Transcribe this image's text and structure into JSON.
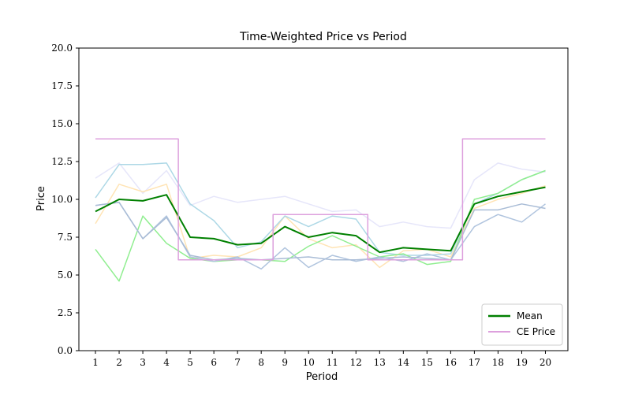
{
  "chart_data": {
    "type": "line",
    "title": "Time-Weighted Price vs Period",
    "xlabel": "Period",
    "ylabel": "Price",
    "x": [
      1,
      2,
      3,
      4,
      5,
      6,
      7,
      8,
      9,
      10,
      11,
      12,
      13,
      14,
      15,
      16,
      17,
      18,
      19,
      20
    ],
    "xlim": [
      0.3,
      20.95
    ],
    "ylim": [
      0,
      20
    ],
    "yticks": [
      "0.0",
      "2.5",
      "5.0",
      "7.5",
      "10.0",
      "12.5",
      "15.0",
      "17.5",
      "20.0"
    ],
    "ytick_values": [
      0,
      2.5,
      5,
      7.5,
      10,
      12.5,
      15,
      17.5,
      20
    ],
    "grid": false,
    "legend_position": "lower-right",
    "series": [
      {
        "values": [
          11.4,
          12.4,
          10.4,
          11.9,
          9.6,
          10.2,
          9.8,
          10.0,
          10.2,
          9.7,
          9.2,
          9.3,
          8.2,
          8.5,
          8.2,
          8.1,
          11.3,
          12.4,
          12.0,
          11.8
        ],
        "color": "#e6e6fa",
        "width": 1.5,
        "legend": false
      },
      {
        "values": [
          8.4,
          11.0,
          10.5,
          11.0,
          6.1,
          6.3,
          6.2,
          6.8,
          8.9,
          7.4,
          6.8,
          7.0,
          5.5,
          6.6,
          6.7,
          6.2,
          9.4,
          10.0,
          10.4,
          10.9
        ],
        "color": "#ffe4b5",
        "width": 1.5,
        "legend": false
      },
      {
        "values": [
          10.1,
          12.3,
          12.3,
          12.4,
          9.7,
          8.6,
          6.8,
          7.2,
          8.9,
          8.2,
          8.9,
          8.7,
          6.5,
          6.3,
          6.3,
          6.4,
          9.7,
          10.4,
          11.3,
          11.9
        ],
        "color": "#add8e6",
        "width": 1.5,
        "legend": false
      },
      {
        "values": [
          6.7,
          4.6,
          8.9,
          7.1,
          6.1,
          5.9,
          6.0,
          6.0,
          5.9,
          6.9,
          7.6,
          6.9,
          6.2,
          6.4,
          5.7,
          5.9,
          10.0,
          10.4,
          11.3,
          11.9
        ],
        "color": "#90ee90",
        "width": 1.5,
        "legend": false
      },
      {
        "values": [
          9.6,
          9.8,
          7.4,
          8.9,
          6.2,
          5.9,
          6.2,
          5.4,
          6.8,
          5.5,
          6.3,
          5.9,
          6.2,
          5.9,
          6.4,
          6.0,
          8.2,
          9.0,
          8.5,
          9.7
        ],
        "color": "#b0c4de",
        "width": 1.5,
        "legend": false
      },
      {
        "values": [
          9.6,
          9.8,
          7.4,
          8.8,
          6.3,
          6.0,
          6.1,
          6.0,
          6.1,
          6.2,
          6.0,
          6.0,
          6.1,
          6.2,
          6.1,
          6.0,
          9.3,
          9.3,
          9.7,
          9.4
        ],
        "color": "#a9bcd6",
        "width": 1.5,
        "legend": false
      },
      {
        "name": "Mean",
        "values": [
          9.2,
          10.0,
          9.9,
          10.3,
          7.5,
          7.4,
          7.0,
          7.1,
          8.2,
          7.5,
          7.8,
          7.6,
          6.5,
          6.8,
          6.7,
          6.6,
          9.7,
          10.2,
          10.5,
          10.8
        ],
        "color": "#008000",
        "width": 2,
        "legend": true
      },
      {
        "name": "CE Price",
        "step": true,
        "points": [
          [
            1,
            14
          ],
          [
            4.5,
            14
          ],
          [
            4.5,
            6
          ],
          [
            8.5,
            6
          ],
          [
            8.5,
            9
          ],
          [
            12.5,
            9
          ],
          [
            12.5,
            6
          ],
          [
            16.5,
            6
          ],
          [
            16.5,
            14
          ],
          [
            20,
            14
          ]
        ],
        "color": "#dda0dd",
        "width": 1.5,
        "legend": true
      }
    ]
  }
}
